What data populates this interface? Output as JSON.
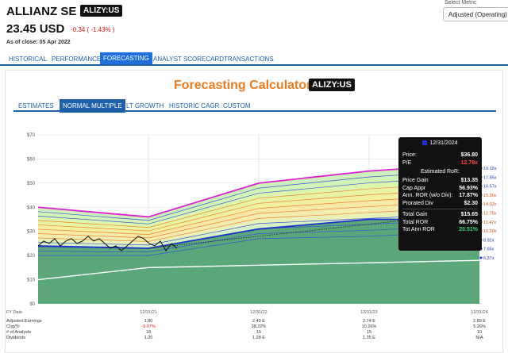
{
  "header": {
    "company": "ALLIANZ SE",
    "ticker": "ALIZY:US",
    "price": "23.45 USD",
    "change": "-0.34 ( -1.43% )",
    "as_of": "As of close: 05 Apr 2022",
    "metric_label": "Select Metric",
    "metric_value": "Adjusted (Operating) EPS"
  },
  "nav": {
    "tabs": [
      "HISTORICAL",
      "PERFORMANCE",
      "FORECASTING",
      "ANALYST SCORECARD",
      "TRANSACTIONS"
    ],
    "active": "FORECASTING"
  },
  "calculator": {
    "title": "Forecasting Calculators",
    "ticker": "ALIZY:US",
    "tabs": [
      "ESTIMATES",
      "NORMAL MULTIPLE",
      "LT GROWTH",
      "HISTORIC CAGR",
      "CUSTOM"
    ],
    "active": "NORMAL MULTIPLE"
  },
  "tooltip": {
    "date": "12/31/2024",
    "price_label": "Price:",
    "price": "$36.80",
    "pe_label": "P/E",
    "pe": "12.78x",
    "sub": "Estimated RoR:",
    "rows": [
      {
        "label": "Price Gain",
        "value": "$13.35"
      },
      {
        "label": "Cap Appr",
        "value": "56.93%"
      },
      {
        "label": "Ann. ROR (w/o Div):",
        "value": "17.87%"
      },
      {
        "label": "Prorated Div",
        "value": "$2.30"
      },
      {
        "label": "Total Gain",
        "value": "$15.65"
      },
      {
        "label": "Total ROR",
        "value": "66.75%"
      },
      {
        "label": "Tot Ann ROR",
        "value": "20.51%"
      }
    ]
  },
  "chart_data": {
    "type": "area",
    "ylim": [
      0,
      70
    ],
    "y_ticks": [
      "$0",
      "$10",
      "$20",
      "$30",
      "$40",
      "$50",
      "$60",
      "$70"
    ],
    "x_labels": [
      "FY Date",
      "12/31/21",
      "12/31/22",
      "12/31/23",
      "12/31/24"
    ],
    "multiple_labels": [
      "19.12x",
      "17.85x",
      "16.57x",
      "15.30x",
      "14.02x",
      "12.75x",
      "11.47x",
      "10.20x",
      "8.92x",
      "7.65x",
      "6.37x"
    ],
    "multiple_colors": [
      "#1f2fd0",
      "#1f2fd0",
      "#1f2fd0",
      "#e04a10",
      "#e04a10",
      "#e04a10",
      "#e04a10",
      "#e04a10",
      "#1f2fd0",
      "#1f2fd0",
      "#1f2fd0"
    ],
    "table": {
      "rows": [
        {
          "label": "Adjusted Earnings",
          "values": [
            "1.80",
            "2.49 E",
            "2.74 E",
            "2.89 E"
          ]
        },
        {
          "label": "Chg/Yr",
          "values": [
            "-9.07%",
            "38.22%",
            "10.26%",
            "5.26%"
          ]
        },
        {
          "label": "# of Analysts",
          "values": [
            "18",
            "15",
            "15",
            "10"
          ]
        },
        {
          "label": "Dividends",
          "values": [
            "1.20",
            "1.28 E",
            "1.35 E",
            "N/A"
          ]
        }
      ]
    }
  }
}
